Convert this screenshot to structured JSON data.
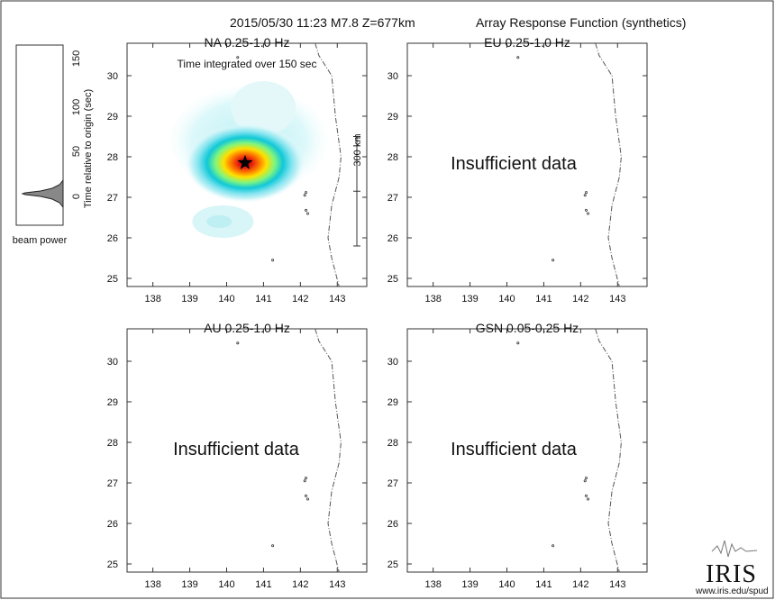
{
  "header": {
    "event": "2015/05/30 11:23  M7.8  Z=677km",
    "product": "Array Response Function (synthetics)"
  },
  "side_panel": {
    "ylabel": "Time relative to origin (sec)",
    "xlabel": "beam power",
    "ticks": [
      "150",
      "100",
      "50",
      "0"
    ]
  },
  "panels": [
    {
      "id": "na",
      "title": "NA  0.25-1.0 Hz",
      "annotation": "Time integrated over 150 sec",
      "status": "",
      "scalebar_label": "300 km"
    },
    {
      "id": "eu",
      "title": "EU  0.25-1.0 Hz",
      "annotation": "",
      "status": "Insufficient data",
      "scalebar_label": ""
    },
    {
      "id": "au",
      "title": "AU  0.25-1.0 Hz",
      "annotation": "",
      "status": "Insufficient data",
      "scalebar_label": ""
    },
    {
      "id": "gsn",
      "title": "GSN  0.05-0.25 Hz",
      "annotation": "",
      "status": "Insufficient data",
      "scalebar_label": ""
    }
  ],
  "axis": {
    "xticks": [
      "138",
      "139",
      "140",
      "141",
      "142",
      "143"
    ],
    "yticks": [
      "30",
      "29",
      "28",
      "27",
      "26",
      "25"
    ]
  },
  "logo": {
    "text": "IRIS",
    "url": "www.iris.edu/spud"
  },
  "chart_data": {
    "type": "heatmap",
    "xlim": [
      137.3,
      143.8
    ],
    "ylim": [
      24.8,
      30.8
    ],
    "xticks": [
      138,
      139,
      140,
      141,
      142,
      143
    ],
    "yticks": [
      25,
      26,
      27,
      28,
      29,
      30
    ],
    "epicenter": {
      "lon": 140.5,
      "lat": 27.85
    },
    "beam_power_peak_time_sec": 0,
    "side_time_range": [
      -20,
      155
    ]
  }
}
